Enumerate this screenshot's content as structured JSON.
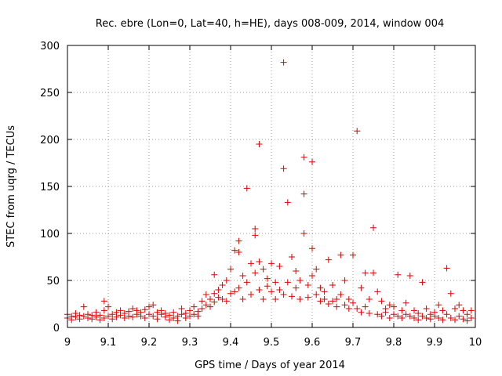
{
  "chart_data": {
    "type": "scatter",
    "title": "Rec. ebre (Lon=0, Lat=40, h=HE), days 008-009, 2014, window 004",
    "xlabel": "GPS time / Days of year 2014",
    "ylabel": "STEC from uqrg / TECUs",
    "xlim": [
      9,
      10
    ],
    "ylim": [
      0,
      300
    ],
    "grid": true,
    "marker": "+",
    "color": "#e00000",
    "xticks": [
      "9",
      "9.1",
      "9.2",
      "9.3",
      "9.4",
      "9.5",
      "9.6",
      "9.7",
      "9.8",
      "9.9",
      "10"
    ],
    "yticks": [
      "0",
      "50",
      "100",
      "150",
      "200",
      "250",
      "300"
    ],
    "points": [
      [
        9.0,
        14
      ],
      [
        9.0,
        10
      ],
      [
        9.01,
        12
      ],
      [
        9.01,
        8
      ],
      [
        9.02,
        15
      ],
      [
        9.02,
        11
      ],
      [
        9.03,
        9
      ],
      [
        9.03,
        13
      ],
      [
        9.04,
        22
      ],
      [
        9.04,
        12
      ],
      [
        9.05,
        10
      ],
      [
        9.05,
        14
      ],
      [
        9.06,
        9
      ],
      [
        9.06,
        13
      ],
      [
        9.07,
        16
      ],
      [
        9.07,
        11
      ],
      [
        9.08,
        8
      ],
      [
        9.08,
        13
      ],
      [
        9.09,
        18
      ],
      [
        9.09,
        10
      ],
      [
        9.09,
        28
      ],
      [
        9.1,
        22
      ],
      [
        9.1,
        12
      ],
      [
        9.11,
        14
      ],
      [
        9.11,
        9
      ],
      [
        9.12,
        16
      ],
      [
        9.12,
        11
      ],
      [
        9.13,
        13
      ],
      [
        9.13,
        18
      ],
      [
        9.14,
        10
      ],
      [
        9.14,
        15
      ],
      [
        9.15,
        12
      ],
      [
        9.15,
        17
      ],
      [
        9.16,
        20
      ],
      [
        9.16,
        11
      ],
      [
        9.17,
        14
      ],
      [
        9.17,
        18
      ],
      [
        9.18,
        12
      ],
      [
        9.18,
        16
      ],
      [
        9.19,
        10
      ],
      [
        9.19,
        19
      ],
      [
        9.2,
        14
      ],
      [
        9.2,
        22
      ],
      [
        9.21,
        24
      ],
      [
        9.21,
        12
      ],
      [
        9.22,
        16
      ],
      [
        9.22,
        9
      ],
      [
        9.23,
        14
      ],
      [
        9.23,
        18
      ],
      [
        9.24,
        11
      ],
      [
        9.24,
        15
      ],
      [
        9.25,
        8
      ],
      [
        9.25,
        13
      ],
      [
        9.26,
        10
      ],
      [
        9.26,
        16
      ],
      [
        9.27,
        12
      ],
      [
        9.27,
        7
      ],
      [
        9.28,
        14
      ],
      [
        9.28,
        20
      ],
      [
        9.29,
        10
      ],
      [
        9.29,
        15
      ],
      [
        9.3,
        12
      ],
      [
        9.3,
        18
      ],
      [
        9.31,
        14
      ],
      [
        9.31,
        22
      ],
      [
        9.32,
        17
      ],
      [
        9.32,
        12
      ],
      [
        9.33,
        20
      ],
      [
        9.33,
        28
      ],
      [
        9.34,
        24
      ],
      [
        9.34,
        35
      ],
      [
        9.35,
        30
      ],
      [
        9.35,
        22
      ],
      [
        9.36,
        36
      ],
      [
        9.36,
        56
      ],
      [
        9.36,
        27
      ],
      [
        9.37,
        32
      ],
      [
        9.37,
        40
      ],
      [
        9.38,
        30
      ],
      [
        9.38,
        45
      ],
      [
        9.39,
        28
      ],
      [
        9.39,
        50
      ],
      [
        9.4,
        36
      ],
      [
        9.4,
        62
      ],
      [
        9.41,
        38
      ],
      [
        9.41,
        82
      ],
      [
        9.42,
        42
      ],
      [
        9.42,
        92
      ],
      [
        9.42,
        80
      ],
      [
        9.43,
        30
      ],
      [
        9.43,
        55
      ],
      [
        9.44,
        148
      ],
      [
        9.44,
        48
      ],
      [
        9.45,
        68
      ],
      [
        9.45,
        35
      ],
      [
        9.46,
        105
      ],
      [
        9.46,
        98
      ],
      [
        9.46,
        58
      ],
      [
        9.47,
        195
      ],
      [
        9.47,
        70
      ],
      [
        9.47,
        40
      ],
      [
        9.48,
        62
      ],
      [
        9.48,
        30
      ],
      [
        9.49,
        52
      ],
      [
        9.49,
        44
      ],
      [
        9.5,
        68
      ],
      [
        9.5,
        38
      ],
      [
        9.51,
        48
      ],
      [
        9.51,
        30
      ],
      [
        9.52,
        65
      ],
      [
        9.52,
        40
      ],
      [
        9.53,
        282
      ],
      [
        9.53,
        169
      ],
      [
        9.53,
        35
      ],
      [
        9.54,
        133
      ],
      [
        9.54,
        48
      ],
      [
        9.55,
        75
      ],
      [
        9.55,
        33
      ],
      [
        9.56,
        60
      ],
      [
        9.56,
        42
      ],
      [
        9.57,
        50
      ],
      [
        9.57,
        30
      ],
      [
        9.58,
        181
      ],
      [
        9.58,
        142
      ],
      [
        9.58,
        100
      ],
      [
        9.59,
        45
      ],
      [
        9.59,
        32
      ],
      [
        9.6,
        176
      ],
      [
        9.6,
        84
      ],
      [
        9.6,
        55
      ],
      [
        9.61,
        62
      ],
      [
        9.61,
        35
      ],
      [
        9.62,
        42
      ],
      [
        9.62,
        28
      ],
      [
        9.63,
        30
      ],
      [
        9.63,
        38
      ],
      [
        9.64,
        72
      ],
      [
        9.64,
        25
      ],
      [
        9.65,
        45
      ],
      [
        9.65,
        28
      ],
      [
        9.66,
        30
      ],
      [
        9.66,
        22
      ],
      [
        9.67,
        77
      ],
      [
        9.67,
        35
      ],
      [
        9.68,
        50
      ],
      [
        9.68,
        24
      ],
      [
        9.69,
        30
      ],
      [
        9.69,
        20
      ],
      [
        9.7,
        77
      ],
      [
        9.7,
        26
      ],
      [
        9.71,
        209
      ],
      [
        9.71,
        20
      ],
      [
        9.72,
        42
      ],
      [
        9.72,
        16
      ],
      [
        9.73,
        58
      ],
      [
        9.73,
        22
      ],
      [
        9.74,
        30
      ],
      [
        9.74,
        15
      ],
      [
        9.75,
        106
      ],
      [
        9.75,
        58
      ],
      [
        9.76,
        38
      ],
      [
        9.76,
        14
      ],
      [
        9.77,
        28
      ],
      [
        9.77,
        12
      ],
      [
        9.78,
        20
      ],
      [
        9.78,
        16
      ],
      [
        9.79,
        24
      ],
      [
        9.79,
        10
      ],
      [
        9.8,
        14
      ],
      [
        9.8,
        22
      ],
      [
        9.81,
        56
      ],
      [
        9.81,
        12
      ],
      [
        9.82,
        18
      ],
      [
        9.82,
        10
      ],
      [
        9.83,
        26
      ],
      [
        9.83,
        14
      ],
      [
        9.84,
        55
      ],
      [
        9.84,
        12
      ],
      [
        9.85,
        18
      ],
      [
        9.85,
        10
      ],
      [
        9.86,
        15
      ],
      [
        9.86,
        8
      ],
      [
        9.87,
        48
      ],
      [
        9.87,
        12
      ],
      [
        9.88,
        20
      ],
      [
        9.88,
        10
      ],
      [
        9.89,
        14
      ],
      [
        9.89,
        9
      ],
      [
        9.9,
        16
      ],
      [
        9.9,
        12
      ],
      [
        9.91,
        24
      ],
      [
        9.91,
        10
      ],
      [
        9.92,
        18
      ],
      [
        9.92,
        8
      ],
      [
        9.93,
        63
      ],
      [
        9.93,
        14
      ],
      [
        9.94,
        36
      ],
      [
        9.94,
        10
      ],
      [
        9.95,
        20
      ],
      [
        9.95,
        8
      ],
      [
        9.96,
        24
      ],
      [
        9.96,
        12
      ],
      [
        9.97,
        18
      ],
      [
        9.97,
        9
      ],
      [
        9.98,
        14
      ],
      [
        9.98,
        7
      ],
      [
        9.99,
        18
      ],
      [
        9.99,
        10
      ]
    ]
  }
}
